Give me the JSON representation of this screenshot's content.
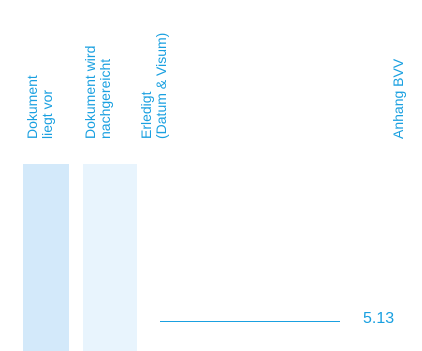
{
  "columns": {
    "dokument_liegt_vor": [
      "Dokument",
      "liegt vor"
    ],
    "dokument_nachgereicht": [
      "Dokument wird",
      "nachgereicht"
    ],
    "erledigt": [
      "Erledigt",
      "(Datum & Visum)"
    ],
    "anhang": "Anhang BVV"
  },
  "row": {
    "number": "5.13"
  },
  "colors": {
    "accent": "#1aa0e0",
    "box_fill_1": "#d3e9fa",
    "box_fill_2": "#e8f4fd"
  }
}
